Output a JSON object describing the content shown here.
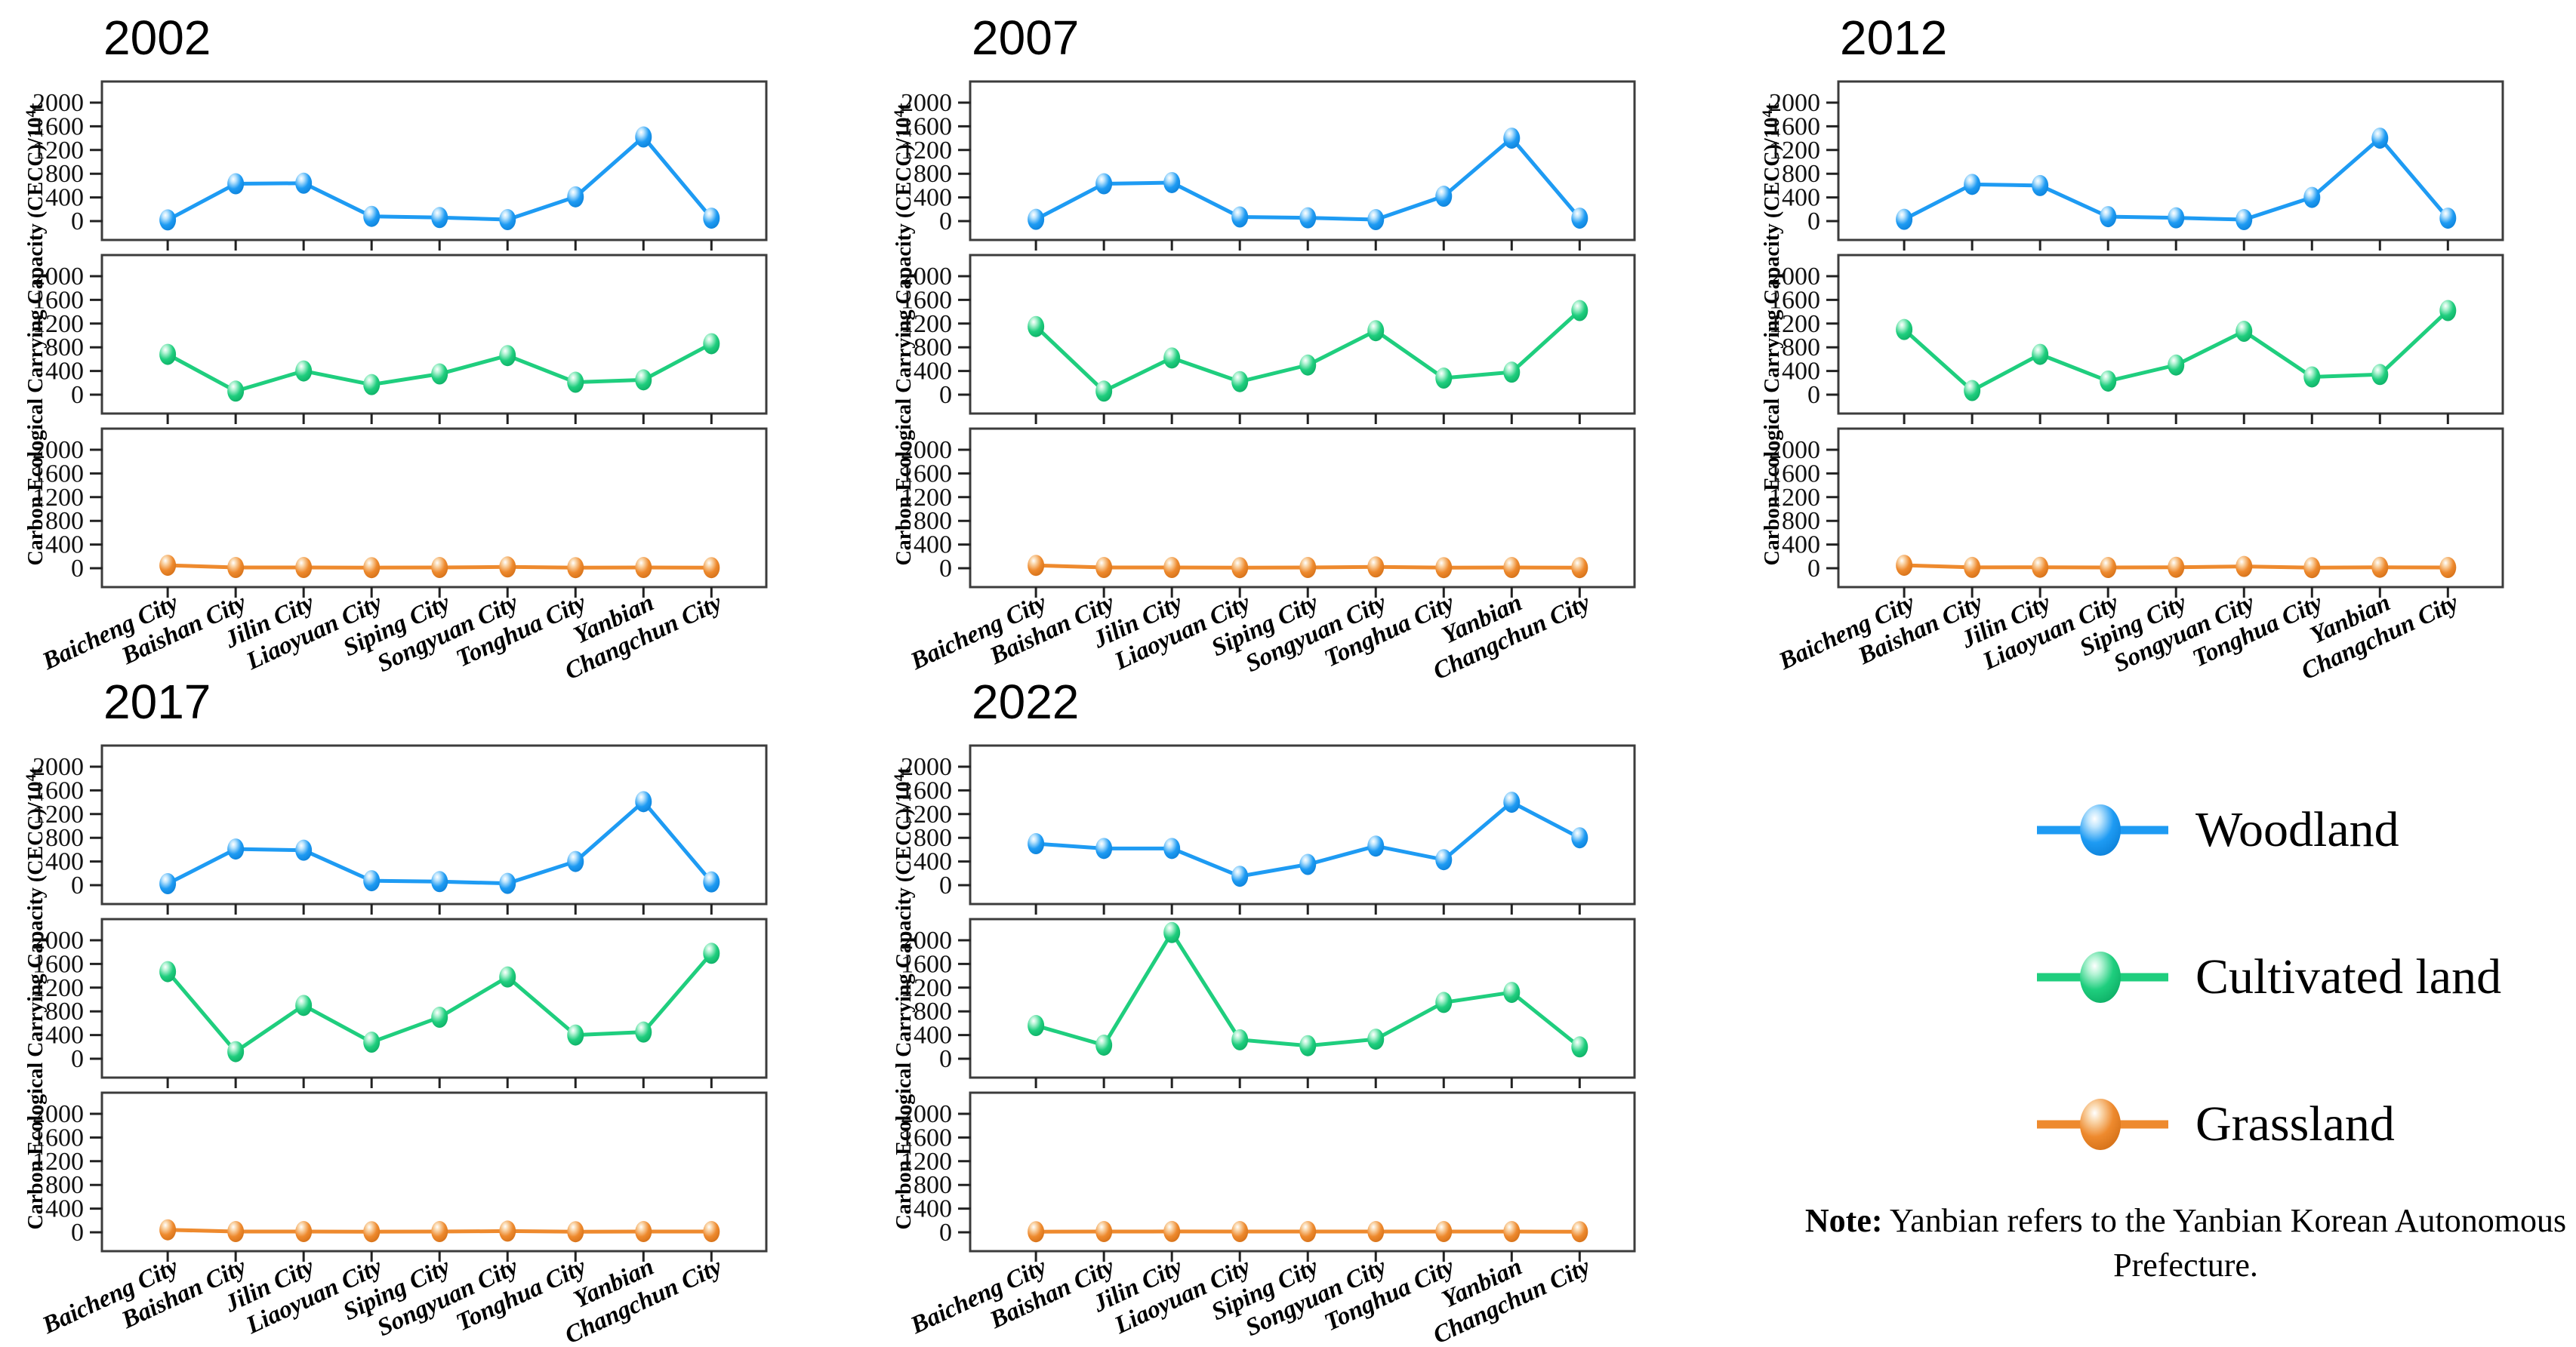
{
  "axis": {
    "ylabel_prefix": "Carbon Ecological Carrying Capacity (CECC)/10",
    "ylabel_sup": "4",
    "ylabel_suffix": "t",
    "yticks": [
      0,
      400,
      800,
      1200,
      1600,
      2000
    ]
  },
  "chart_data": [
    {
      "type": "line",
      "title": "2002",
      "ylabel": "Carbon Ecological Carrying Capacity (CECC)/10^4 t",
      "ylim": [
        0,
        2200
      ],
      "yticks": [
        0,
        400,
        800,
        1200,
        1600,
        2000
      ],
      "grid": false,
      "categories": [
        "Baicheng City",
        "Baishan City",
        "Jilin City",
        "Liaoyuan City",
        "Siping City",
        "Songyuan City",
        "Tonghua City",
        "Yanbian",
        "Changchun City"
      ],
      "series": [
        {
          "name": "Woodland",
          "color": "#1E9BF3",
          "values": [
            20,
            630,
            640,
            80,
            60,
            25,
            410,
            1420,
            50
          ]
        },
        {
          "name": "Cultivated land",
          "color": "#1FCE7E",
          "values": [
            680,
            60,
            400,
            170,
            350,
            660,
            210,
            250,
            860
          ]
        },
        {
          "name": "Grassland",
          "color": "#EE8A2E",
          "values": [
            50,
            12,
            12,
            10,
            12,
            22,
            10,
            12,
            10
          ]
        }
      ]
    },
    {
      "type": "line",
      "title": "2007",
      "ylabel": "Carbon Ecological Carrying Capacity (CECC)/10^4 t",
      "ylim": [
        0,
        2200
      ],
      "yticks": [
        0,
        400,
        800,
        1200,
        1600,
        2000
      ],
      "grid": false,
      "categories": [
        "Baicheng City",
        "Baishan City",
        "Jilin City",
        "Liaoyuan City",
        "Siping City",
        "Songyuan City",
        "Tonghua City",
        "Yanbian",
        "Changchun City"
      ],
      "series": [
        {
          "name": "Woodland",
          "color": "#1E9BF3",
          "values": [
            30,
            630,
            650,
            70,
            55,
            25,
            420,
            1400,
            50
          ]
        },
        {
          "name": "Cultivated land",
          "color": "#1FCE7E",
          "values": [
            1150,
            60,
            620,
            220,
            500,
            1080,
            280,
            380,
            1420
          ]
        },
        {
          "name": "Grassland",
          "color": "#EE8A2E",
          "values": [
            48,
            12,
            12,
            10,
            12,
            22,
            10,
            12,
            10
          ]
        }
      ]
    },
    {
      "type": "line",
      "title": "2012",
      "ylabel": "Carbon Ecological Carrying Capacity (CECC)/10^4 t",
      "ylim": [
        0,
        2200
      ],
      "yticks": [
        0,
        400,
        800,
        1200,
        1600,
        2000
      ],
      "grid": false,
      "categories": [
        "Baicheng City",
        "Baishan City",
        "Jilin City",
        "Liaoyuan City",
        "Siping City",
        "Songyuan City",
        "Tonghua City",
        "Yanbian",
        "Changchun City"
      ],
      "series": [
        {
          "name": "Woodland",
          "color": "#1E9BF3",
          "values": [
            30,
            620,
            600,
            75,
            55,
            25,
            400,
            1400,
            50
          ]
        },
        {
          "name": "Cultivated land",
          "color": "#1FCE7E",
          "values": [
            1100,
            70,
            680,
            230,
            500,
            1070,
            300,
            340,
            1420
          ]
        },
        {
          "name": "Grassland",
          "color": "#EE8A2E",
          "values": [
            50,
            14,
            16,
            12,
            16,
            30,
            10,
            16,
            12
          ]
        }
      ]
    },
    {
      "type": "line",
      "title": "2017",
      "ylabel": "Carbon Ecological Carrying Capacity (CECC)/10^4 t",
      "ylim": [
        0,
        2200
      ],
      "yticks": [
        0,
        400,
        800,
        1200,
        1600,
        2000
      ],
      "grid": false,
      "categories": [
        "Baicheng City",
        "Baishan City",
        "Jilin City",
        "Liaoyuan City",
        "Siping City",
        "Songyuan City",
        "Tonghua City",
        "Yanbian",
        "Changchun City"
      ],
      "series": [
        {
          "name": "Woodland",
          "color": "#1E9BF3",
          "values": [
            25,
            610,
            590,
            75,
            60,
            30,
            400,
            1410,
            55
          ]
        },
        {
          "name": "Cultivated land",
          "color": "#1FCE7E",
          "values": [
            1470,
            120,
            900,
            280,
            700,
            1380,
            400,
            450,
            1780
          ]
        },
        {
          "name": "Grassland",
          "color": "#EE8A2E",
          "values": [
            42,
            12,
            12,
            10,
            12,
            20,
            10,
            12,
            12
          ]
        }
      ]
    },
    {
      "type": "line",
      "title": "2022",
      "ylabel": "Carbon Ecological Carrying Capacity (CECC)/10^4 t",
      "ylim": [
        0,
        2200
      ],
      "yticks": [
        0,
        400,
        800,
        1200,
        1600,
        2000
      ],
      "grid": false,
      "categories": [
        "Baicheng City",
        "Baishan City",
        "Jilin City",
        "Liaoyuan City",
        "Siping City",
        "Songyuan City",
        "Tonghua City",
        "Yanbian",
        "Changchun City"
      ],
      "series": [
        {
          "name": "Woodland",
          "color": "#1E9BF3",
          "values": [
            700,
            620,
            620,
            150,
            350,
            660,
            430,
            1400,
            800
          ]
        },
        {
          "name": "Cultivated land",
          "color": "#1FCE7E",
          "values": [
            560,
            230,
            2130,
            320,
            220,
            330,
            950,
            1120,
            200
          ]
        },
        {
          "name": "Grassland",
          "color": "#EE8A2E",
          "values": [
            10,
            12,
            14,
            12,
            12,
            12,
            12,
            12,
            10
          ]
        }
      ]
    }
  ],
  "legend": {
    "items": [
      {
        "name": "woodland",
        "label": "Woodland",
        "color": "#1E9BF3"
      },
      {
        "name": "cultivated-land",
        "label": "Cultivated land",
        "color": "#1FCE7E"
      },
      {
        "name": "grassland",
        "label": "Grassland",
        "color": "#EE8A2E"
      }
    ]
  },
  "note": {
    "label": "Note:",
    "text": " Yanbian refers to the Yanbian Korean Autonomous Prefecture."
  }
}
